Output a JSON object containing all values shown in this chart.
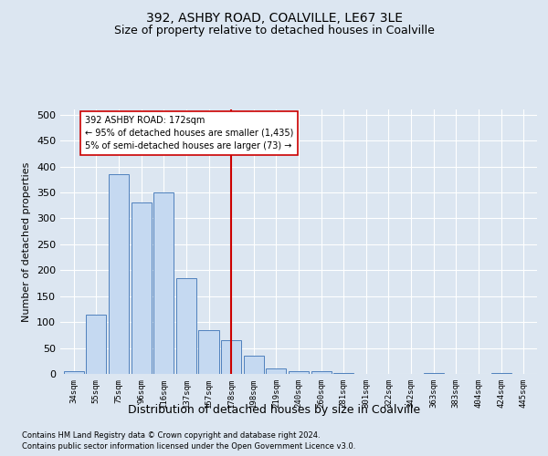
{
  "title": "392, ASHBY ROAD, COALVILLE, LE67 3LE",
  "subtitle": "Size of property relative to detached houses in Coalville",
  "xlabel": "Distribution of detached houses by size in Coalville",
  "ylabel": "Number of detached properties",
  "footer_line1": "Contains HM Land Registry data © Crown copyright and database right 2024.",
  "footer_line2": "Contains public sector information licensed under the Open Government Licence v3.0.",
  "bar_labels": [
    "34sqm",
    "55sqm",
    "75sqm",
    "96sqm",
    "116sqm",
    "137sqm",
    "157sqm",
    "178sqm",
    "198sqm",
    "219sqm",
    "240sqm",
    "260sqm",
    "281sqm",
    "301sqm",
    "322sqm",
    "342sqm",
    "363sqm",
    "383sqm",
    "404sqm",
    "424sqm",
    "445sqm"
  ],
  "bar_values": [
    5,
    115,
    385,
    330,
    350,
    185,
    85,
    65,
    35,
    10,
    5,
    5,
    2,
    0,
    0,
    0,
    2,
    0,
    0,
    2,
    0
  ],
  "bar_color": "#c5d9f1",
  "bar_edge_color": "#4f81bd",
  "vline_x": 7,
  "vline_color": "#cc0000",
  "annotation_text": "392 ASHBY ROAD: 172sqm\n← 95% of detached houses are smaller (1,435)\n5% of semi-detached houses are larger (73) →",
  "annotation_box_color": "#ffffff",
  "annotation_box_edge": "#cc0000",
  "ylim": [
    0,
    510
  ],
  "yticks": [
    0,
    50,
    100,
    150,
    200,
    250,
    300,
    350,
    400,
    450,
    500
  ],
  "bg_color": "#dce6f1",
  "plot_bg_color": "#dce6f1",
  "grid_color": "#ffffff",
  "title_fontsize": 10,
  "subtitle_fontsize": 9,
  "ylabel_fontsize": 8,
  "xlabel_fontsize": 9
}
